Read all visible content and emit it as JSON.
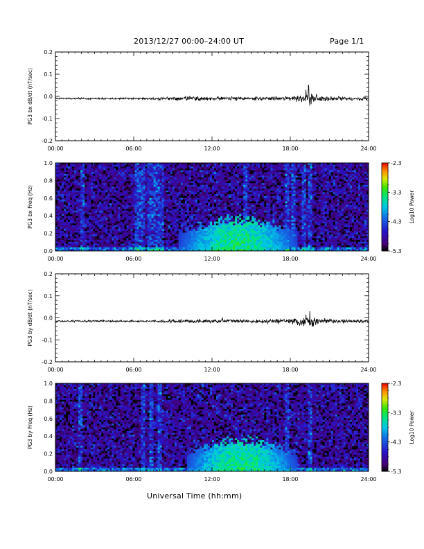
{
  "header": {
    "title": "2013/12/27  00:00–24:00 UT",
    "page": "Page 1/1",
    "xlabel": "Universal Time (hh:mm)"
  },
  "chart_data": [
    {
      "type": "line",
      "ylabel": "PG3 bx dB/dt (nT/sec)",
      "ylim": [
        -0.2,
        0.2
      ],
      "yticks": [
        "0.2",
        "0.1",
        "0.0",
        "-0.1",
        "-0.2"
      ],
      "xticks": [
        "00:00",
        "06:00",
        "12:00",
        "18:00",
        "24:00"
      ],
      "xlim_hours": [
        0,
        24
      ],
      "baseline": -0.01,
      "activity_envelope": {
        "hours": [
          0,
          6,
          8,
          10,
          12,
          14,
          16,
          18,
          19.5,
          20,
          21,
          24
        ],
        "amplitude": [
          0.002,
          0.002,
          0.003,
          0.005,
          0.004,
          0.004,
          0.004,
          0.006,
          0.012,
          0.008,
          0.005,
          0.003
        ]
      },
      "spikes": [
        {
          "hour": 19.4,
          "value": 0.05
        },
        {
          "hour": 19.2,
          "value": 0.03
        },
        {
          "hour": 19.6,
          "value": -0.035
        },
        {
          "hour": 18.7,
          "value": -0.02
        },
        {
          "hour": 20.0,
          "value": 0.01
        }
      ]
    },
    {
      "type": "heatmap",
      "ylabel": "PG3 bx Freq (Hz)",
      "ylim": [
        0.0,
        1.0
      ],
      "yticks": [
        "1.0",
        "0.8",
        "0.6",
        "0.4",
        "0.2",
        "0.0"
      ],
      "xticks": [
        "00:00",
        "06:00",
        "12:00",
        "18:00",
        "24:00"
      ],
      "xlim_hours": [
        0,
        24
      ],
      "colorbar": {
        "label": "Log10 Power",
        "ticks": [
          "-2.3",
          "-3.3",
          "-4.3",
          "-5.3"
        ],
        "range": [
          -5.3,
          -2.3
        ]
      },
      "bright_columns_hours": [
        2.1,
        6.2,
        6.5,
        6.8,
        7.2,
        7.5,
        7.8,
        8.2,
        14.5,
        17.8,
        18.3,
        19.0,
        19.5
      ],
      "enhanced_band": {
        "hours": [
          9.5,
          18.5
        ],
        "max_freq_hz": 0.38,
        "peak_log_power": -3.4
      }
    },
    {
      "type": "line",
      "ylabel": "PG3 by dB/dt (nT/sec)",
      "ylim": [
        -0.2,
        0.2
      ],
      "yticks": [
        "0.2",
        "0.1",
        "0.0",
        "-0.1",
        "-0.2"
      ],
      "xticks": [
        "00:00",
        "06:00",
        "12:00",
        "18:00",
        "24:00"
      ],
      "xlim_hours": [
        0,
        24
      ],
      "baseline": -0.015,
      "activity_envelope": {
        "hours": [
          0,
          6,
          8,
          10,
          12,
          14,
          16,
          18,
          19.5,
          20,
          21,
          24
        ],
        "amplitude": [
          0.002,
          0.002,
          0.003,
          0.004,
          0.004,
          0.004,
          0.004,
          0.006,
          0.011,
          0.008,
          0.005,
          0.003
        ]
      },
      "spikes": [
        {
          "hour": 19.5,
          "value": 0.03
        },
        {
          "hour": 19.2,
          "value": 0.015
        },
        {
          "hour": 19.7,
          "value": -0.04
        },
        {
          "hour": 12.8,
          "value": 0.002
        }
      ]
    },
    {
      "type": "heatmap",
      "ylabel": "PG3 by Freq (Hz)",
      "ylim": [
        0.0,
        1.0
      ],
      "yticks": [
        "1.0",
        "0.8",
        "0.6",
        "0.4",
        "0.2",
        "0.0"
      ],
      "xticks": [
        "00:00",
        "06:00",
        "12:00",
        "18:00",
        "24:00"
      ],
      "xlim_hours": [
        0,
        24
      ],
      "colorbar": {
        "label": "Log10 Power",
        "ticks": [
          "-2.3",
          "-3.3",
          "-4.3",
          "-5.3"
        ],
        "range": [
          -5.3,
          -2.3
        ]
      },
      "bright_columns_hours": [
        2.0,
        6.7,
        7.3,
        8.0,
        17.8,
        19.5
      ],
      "enhanced_band": {
        "hours": [
          10.0,
          18.5
        ],
        "max_freq_hz": 0.38,
        "peak_log_power": -3.4
      }
    }
  ]
}
